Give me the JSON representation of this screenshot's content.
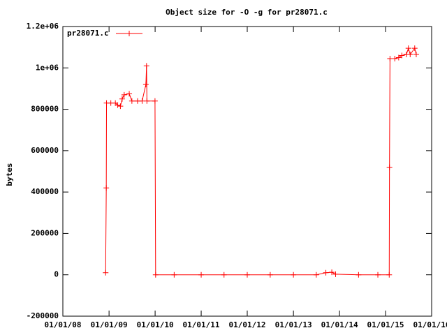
{
  "chart_data": {
    "type": "line",
    "title": "Object size for -O -g for pr28071.c",
    "y_label": "bytes",
    "x": [
      "2008-12-05",
      "2008-12-10",
      "2008-12-12",
      "2009-01-15",
      "2009-02-20",
      "2009-03-10",
      "2009-04-01",
      "2009-04-15",
      "2009-05-01",
      "2009-06-10",
      "2009-07-01",
      "2009-08-15",
      "2009-09-20",
      "2009-10-20",
      "2009-10-25",
      "2009-10-28",
      "2009-12-31",
      "2010-01-05",
      "2010-06-01",
      "2011-01-01",
      "2011-07-01",
      "2012-01-01",
      "2012-07-01",
      "2013-01-01",
      "2013-07-01",
      "2013-09-15",
      "2013-11-01",
      "2013-12-01",
      "2014-06-01",
      "2014-11-01",
      "2015-01-30",
      "2015-02-01",
      "2015-02-05",
      "2015-03-15",
      "2015-04-15",
      "2015-05-10",
      "2015-06-15",
      "2015-07-01",
      "2015-07-15",
      "2015-08-20",
      "2015-09-01"
    ],
    "series": [
      {
        "name": "pr28071.c",
        "color": "#ff0000",
        "values": [
          10000,
          420000,
          830000,
          830000,
          830000,
          820000,
          815000,
          850000,
          870000,
          875000,
          840000,
          840000,
          840000,
          920000,
          1010000,
          840000,
          840000,
          0,
          0,
          0,
          0,
          0,
          0,
          0,
          0,
          10000,
          12000,
          3000,
          0,
          0,
          0,
          520000,
          1045000,
          1045000,
          1050000,
          1060000,
          1065000,
          1095000,
          1065000,
          1095000,
          1065000
        ]
      }
    ],
    "xlim": [
      "2008-01-01",
      "2016-01-01"
    ],
    "xticks": [
      {
        "value": "2008-01-01",
        "label": "01/01/08"
      },
      {
        "value": "2009-01-01",
        "label": "01/01/09"
      },
      {
        "value": "2010-01-01",
        "label": "01/01/10"
      },
      {
        "value": "2011-01-01",
        "label": "01/01/11"
      },
      {
        "value": "2012-01-01",
        "label": "01/01/12"
      },
      {
        "value": "2013-01-01",
        "label": "01/01/13"
      },
      {
        "value": "2014-01-01",
        "label": "01/01/14"
      },
      {
        "value": "2015-01-01",
        "label": "01/01/15"
      },
      {
        "value": "2016-01-01",
        "label": "01/01/16"
      }
    ],
    "ylim": [
      -200000,
      1200000
    ],
    "yticks": [
      -200000,
      0,
      200000,
      400000,
      600000,
      800000,
      {
        "value": 1000000,
        "label": "1e+06"
      },
      {
        "value": 1200000,
        "label": "1.2e+06"
      }
    ],
    "grid": false,
    "legend": "top-left"
  }
}
